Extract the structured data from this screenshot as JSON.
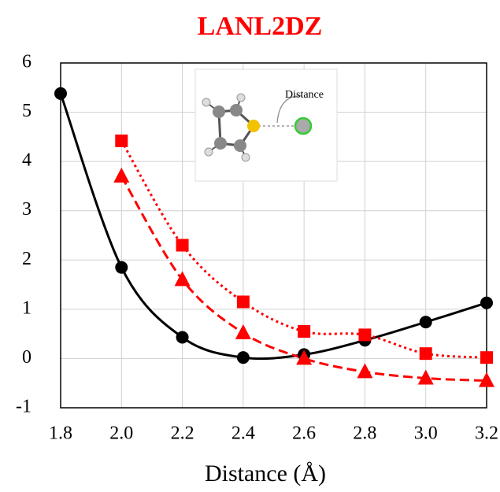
{
  "chart_data": {
    "type": "line",
    "title": "LANL2DZ",
    "xlabel": "Distance (Å)",
    "annotations": [
      "Distance"
    ],
    "x": [
      1.8,
      2.0,
      2.2,
      2.4,
      2.6,
      2.8,
      3.0,
      3.2
    ],
    "series": [
      {
        "color": "#000000",
        "line_style": "solid",
        "marker": "circle",
        "values": [
          5.38,
          1.85,
          0.43,
          0.02,
          0.08,
          0.37,
          0.74,
          1.13
        ]
      },
      {
        "color": "#ff0000",
        "line_style": "dotted",
        "marker": "square",
        "values": [
          null,
          4.42,
          2.3,
          1.15,
          0.55,
          0.48,
          0.1,
          0.02
        ]
      },
      {
        "color": "#ff0000",
        "line_style": "dashed",
        "marker": "triangle",
        "values": [
          null,
          3.7,
          1.6,
          0.52,
          0.0,
          -0.27,
          -0.4,
          -0.45
        ]
      }
    ],
    "xlim": [
      1.8,
      3.2
    ],
    "xticks": [
      1.8,
      {
        "value": 2,
        "label": "2.0"
      },
      2.2,
      2.4,
      2.6,
      2.8,
      {
        "value": 3,
        "label": "3.0"
      },
      3.2
    ],
    "ylim": [
      -1,
      6
    ],
    "yticks": [
      -1,
      0,
      1,
      2,
      3,
      4,
      5,
      6
    ],
    "grid": true
  }
}
